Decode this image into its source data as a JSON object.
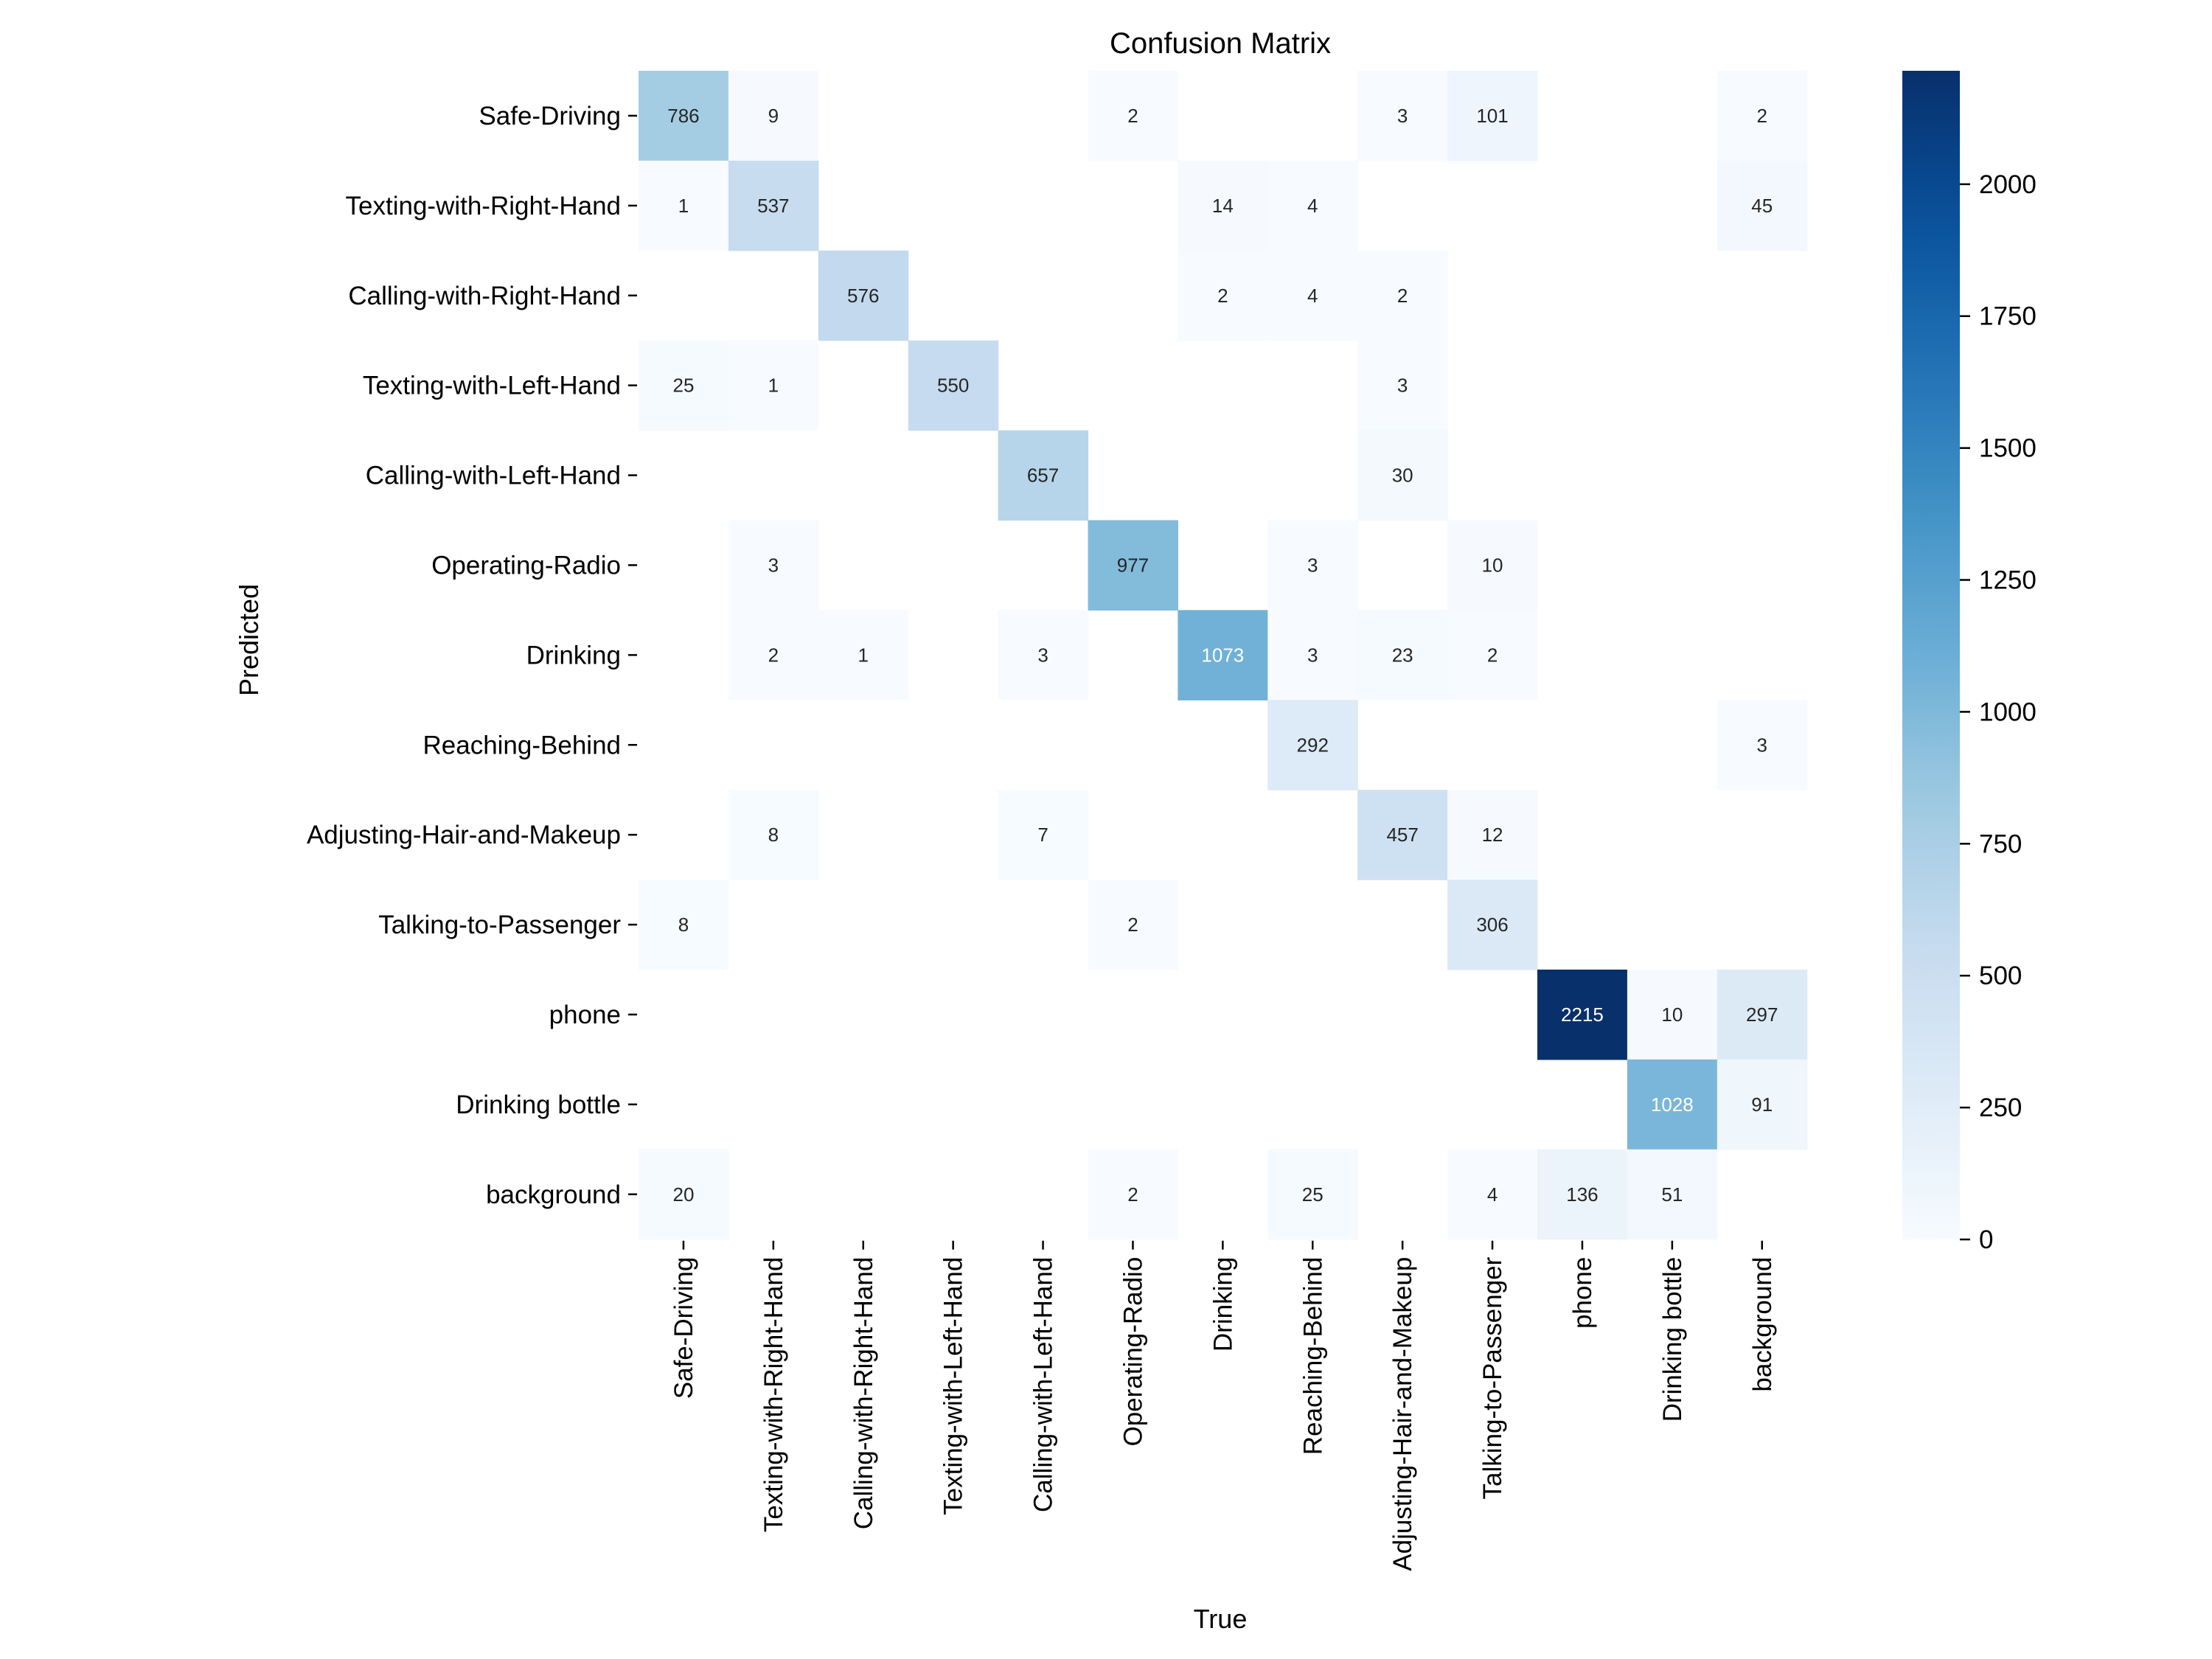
{
  "chart_data": {
    "type": "heatmap",
    "title": "Confusion Matrix",
    "xlabel": "True",
    "ylabel": "Predicted",
    "row_labels": [
      "Safe-Driving",
      "Texting-with-Right-Hand",
      "Calling-with-Right-Hand",
      "Texting-with-Left-Hand",
      "Calling-with-Left-Hand",
      "Operating-Radio",
      "Drinking",
      "Reaching-Behind",
      "Adjusting-Hair-and-Makeup",
      "Talking-to-Passenger",
      "phone",
      "Drinking bottle",
      "background"
    ],
    "col_labels": [
      "Safe-Driving",
      "Texting-with-Right-Hand",
      "Calling-with-Right-Hand",
      "Texting-with-Left-Hand",
      "Calling-with-Left-Hand",
      "Operating-Radio",
      "Drinking",
      "Reaching-Behind",
      "Adjusting-Hair-and-Makeup",
      "Talking-to-Passenger",
      "phone",
      "Drinking bottle",
      "background"
    ],
    "values": [
      [
        786,
        9,
        null,
        null,
        null,
        2,
        null,
        null,
        3,
        101,
        null,
        null,
        2
      ],
      [
        1,
        537,
        null,
        null,
        null,
        null,
        14,
        4,
        null,
        null,
        null,
        null,
        45
      ],
      [
        null,
        null,
        576,
        null,
        null,
        null,
        2,
        4,
        2,
        null,
        null,
        null,
        null
      ],
      [
        25,
        1,
        null,
        550,
        null,
        null,
        null,
        null,
        3,
        null,
        null,
        null,
        null
      ],
      [
        null,
        null,
        null,
        null,
        657,
        null,
        null,
        null,
        30,
        null,
        null,
        null,
        null
      ],
      [
        null,
        3,
        null,
        null,
        null,
        977,
        null,
        3,
        null,
        10,
        null,
        null,
        null
      ],
      [
        null,
        2,
        1,
        null,
        3,
        null,
        1073,
        3,
        23,
        2,
        null,
        null,
        null
      ],
      [
        null,
        null,
        null,
        null,
        null,
        null,
        null,
        292,
        null,
        null,
        null,
        null,
        3
      ],
      [
        null,
        8,
        null,
        null,
        7,
        null,
        null,
        null,
        457,
        12,
        null,
        null,
        null
      ],
      [
        8,
        null,
        null,
        null,
        null,
        2,
        null,
        null,
        null,
        306,
        null,
        null,
        null
      ],
      [
        null,
        null,
        null,
        null,
        null,
        null,
        null,
        null,
        null,
        null,
        2215,
        10,
        297
      ],
      [
        null,
        null,
        null,
        null,
        null,
        null,
        null,
        null,
        null,
        null,
        null,
        1028,
        91
      ],
      [
        20,
        null,
        null,
        null,
        null,
        2,
        null,
        25,
        null,
        4,
        136,
        51,
        null
      ]
    ],
    "colorbar": {
      "vmin": 0,
      "vmax": 2215,
      "ticks": [
        0,
        250,
        500,
        750,
        1000,
        1250,
        1500,
        1750,
        2000
      ],
      "colormap": "Blues"
    },
    "colors": {
      "low": "#f7fbff",
      "high": "#08306b"
    }
  }
}
